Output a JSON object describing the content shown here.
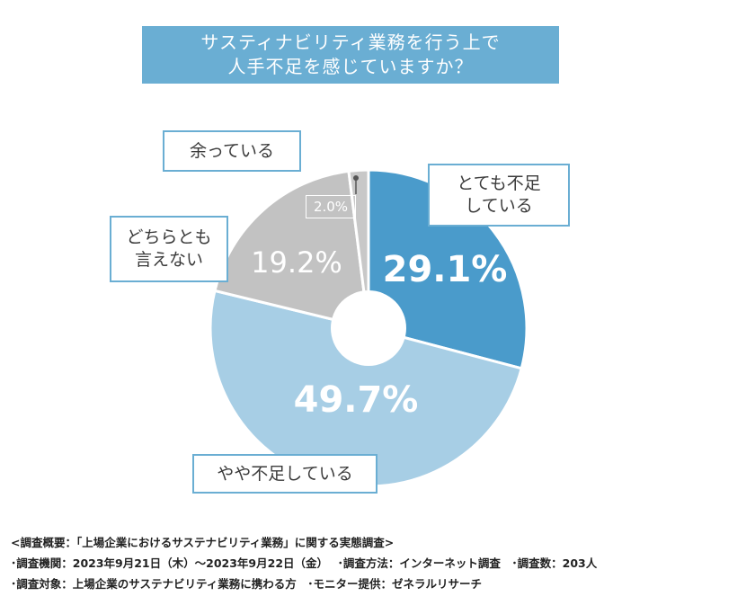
{
  "title_lines": [
    "サスティナビリティ業務を行う上で",
    "人手不足を感じていますか？"
  ],
  "chart_data": {
    "type": "pie",
    "style": "donut",
    "categories": [
      "とても不足している",
      "やや不足している",
      "どちらとも言えない",
      "余っている"
    ],
    "values": [
      29.1,
      49.7,
      19.2,
      2.0
    ],
    "value_labels": [
      "29.1%",
      "49.7%",
      "19.2%",
      "2.0%"
    ],
    "colors": [
      "#4a9bcb",
      "#a7cee5",
      "#c2c2c2",
      "#c8c8c8"
    ],
    "label_colors": [
      "#ffffff",
      "#ffffff",
      "#ffffff",
      "#ffffff"
    ],
    "start_angle": "12 o'clock",
    "direction": "clockwise"
  },
  "callouts": {
    "very_short": [
      "とても不足",
      "している"
    ],
    "somewhat_short": [
      "やや不足している"
    ],
    "neither": [
      "どちらとも",
      "言えない"
    ],
    "surplus": [
      "余っている"
    ]
  },
  "notes": [
    "<調査概要：「上場企業におけるサステナビリティ業務」に関する実態調査>",
    "･調査機関：2023年9月21日（木）～2023年9月22日（金）　 ･調査方法：インターネット調査　･調査数：203人",
    "･調査対象：上場企業のサステナビリティ業務に携わる方　･モニター提供：ゼネラルリサーチ"
  ]
}
